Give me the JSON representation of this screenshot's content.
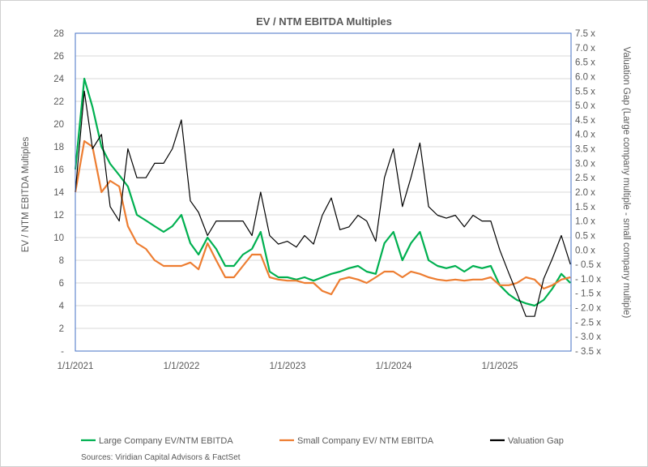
{
  "chart_data": {
    "type": "line",
    "title": "EV / NTM EBITDA Multiples",
    "ylabel": "EV / NTM EBITDA Multiples",
    "y2label": "Valuation Gap (Large company multiple - small company multiple)",
    "ylim": [
      0,
      28
    ],
    "y2lim": [
      -3.5,
      7.5
    ],
    "yticks": [
      "-",
      "2",
      "4",
      "6",
      "8",
      "10",
      "12",
      "14",
      "16",
      "18",
      "20",
      "22",
      "24",
      "26",
      "28"
    ],
    "y2ticks": [
      "- 3.5 x",
      "- 3.0 x",
      "- 2.5 x",
      "- 2.0 x",
      "- 1.5 x",
      "- 1.0 x",
      "- 0.5 x",
      "0.0 x",
      "0.5 x",
      "1.0 x",
      "1.5 x",
      "2.0 x",
      "2.5 x",
      "3.0 x",
      "3.5 x",
      "4.0 x",
      "4.5 x",
      "5.0 x",
      "5.5 x",
      "6.0 x",
      "6.5 x",
      "7.0 x",
      "7.5 x"
    ],
    "xticks": [
      "1/1/2021",
      "1/1/2022",
      "1/1/2023",
      "1/1/2024",
      "1/1/2025"
    ],
    "grid": true,
    "legend_position": "bottom",
    "x": [
      "2021-01",
      "2021-02",
      "2021-03",
      "2021-04",
      "2021-05",
      "2021-06",
      "2021-07",
      "2021-08",
      "2021-09",
      "2021-10",
      "2021-11",
      "2021-12",
      "2022-01",
      "2022-02",
      "2022-03",
      "2022-04",
      "2022-05",
      "2022-06",
      "2022-07",
      "2022-08",
      "2022-09",
      "2022-10",
      "2022-11",
      "2022-12",
      "2023-01",
      "2023-02",
      "2023-03",
      "2023-04",
      "2023-05",
      "2023-06",
      "2023-07",
      "2023-08",
      "2023-09",
      "2023-10",
      "2023-11",
      "2023-12",
      "2024-01",
      "2024-02",
      "2024-03",
      "2024-04",
      "2024-05",
      "2024-06",
      "2024-07",
      "2024-08",
      "2024-09",
      "2024-10",
      "2024-11",
      "2024-12",
      "2025-01",
      "2025-02",
      "2025-03",
      "2025-04",
      "2025-05",
      "2025-06",
      "2025-07",
      "2025-08",
      "2025-09"
    ],
    "series": [
      {
        "name": "Large Company EV/NTM EBITDA",
        "color": "#00b050",
        "axis": "left",
        "values": [
          16,
          24,
          21.5,
          18,
          16.5,
          15.5,
          14.5,
          12,
          11.5,
          11,
          10.5,
          11,
          12,
          9.5,
          8.5,
          10,
          9,
          7.5,
          7.5,
          8.5,
          9,
          10.5,
          7,
          6.5,
          6.5,
          6.3,
          6.5,
          6.2,
          6.5,
          6.8,
          7,
          7.3,
          7.5,
          7,
          6.8,
          9.5,
          10.5,
          8,
          9.5,
          10.5,
          8,
          7.5,
          7.3,
          7.5,
          7,
          7.5,
          7.3,
          7.5,
          5.8,
          5,
          4.5,
          4.2,
          4,
          4.5,
          5.5,
          6.8,
          6
        ]
      },
      {
        "name": "Small Company EV/ NTM EBITDA",
        "color": "#ed7d31",
        "axis": "left",
        "values": [
          14,
          18.5,
          18,
          14,
          15,
          14.5,
          11,
          9.5,
          9,
          8,
          7.5,
          7.5,
          7.5,
          7.8,
          7.2,
          9.5,
          8,
          6.5,
          6.5,
          7.5,
          8.5,
          8.5,
          6.5,
          6.3,
          6.2,
          6.2,
          6,
          6,
          5.3,
          5,
          6.3,
          6.5,
          6.3,
          6,
          6.5,
          7,
          7,
          6.5,
          7,
          6.8,
          6.5,
          6.3,
          6.2,
          6.3,
          6.2,
          6.3,
          6.3,
          6.5,
          5.8,
          5.8,
          6,
          6.5,
          6.3,
          5.5,
          5.8,
          6.3,
          6.5
        ]
      },
      {
        "name": "Valuation Gap",
        "color": "#000000",
        "axis": "right",
        "values": [
          2,
          5.5,
          3.5,
          4,
          1.5,
          1,
          3.5,
          2.5,
          2.5,
          3,
          3,
          3.5,
          4.5,
          1.7,
          1.3,
          0.5,
          1,
          1,
          1,
          1,
          0.5,
          2,
          0.5,
          0.2,
          0.3,
          0.1,
          0.5,
          0.2,
          1.2,
          1.8,
          0.7,
          0.8,
          1.2,
          1,
          0.3,
          2.5,
          3.5,
          1.5,
          2.5,
          3.7,
          1.5,
          1.2,
          1.1,
          1.2,
          0.8,
          1.2,
          1,
          1,
          0,
          -0.8,
          -1.5,
          -2.3,
          -2.3,
          -1,
          -0.3,
          0.5,
          -0.5
        ]
      }
    ]
  },
  "source": "Sources: Viridian Capital Advisors & FactSet"
}
